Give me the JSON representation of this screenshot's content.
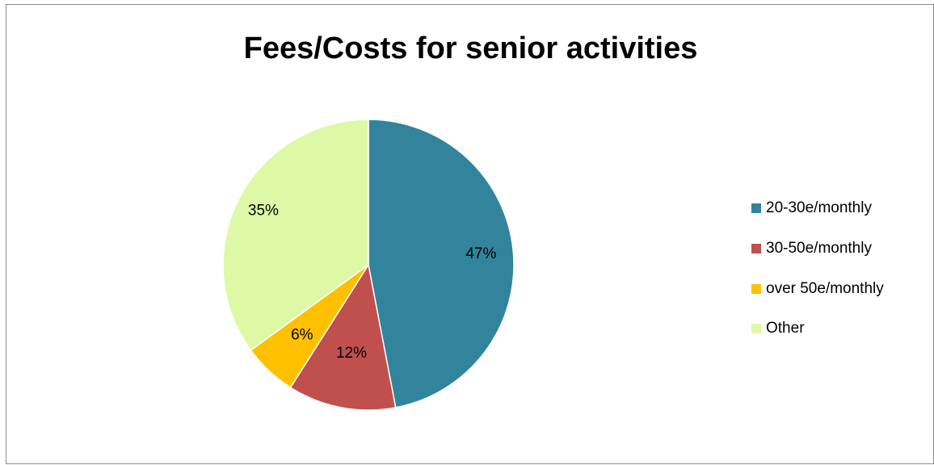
{
  "chart_data": {
    "type": "pie",
    "title": "Fees/Costs for senior activities",
    "categories": [
      "20-30e/monthly",
      "30-50e/monthly",
      "over 50e/monthly",
      "Other"
    ],
    "values": [
      47,
      12,
      6,
      35
    ],
    "labels": [
      "47%",
      "12%",
      "6%",
      "35%"
    ],
    "colors": [
      "#31849B",
      "#C0504D",
      "#FFC000",
      "#DDF9A6"
    ],
    "legend_position": "right",
    "start_angle": "top, clockwise"
  }
}
